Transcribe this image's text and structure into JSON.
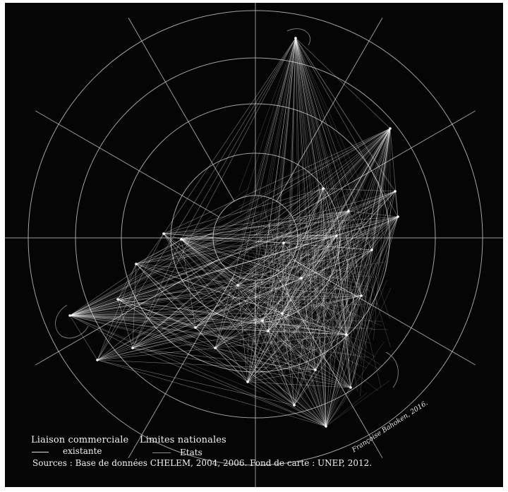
{
  "legend": {
    "trade": {
      "title": "Liaison commerciale",
      "item": "existante"
    },
    "borders": {
      "title": "Limites nationales",
      "item": "Etats"
    }
  },
  "credit": "Françoise Bahoken, 2016.",
  "sources": "Sources : Base de données CHELEM, 2004, 2006. Fond de carte : UNEP, 2012.",
  "colors": {
    "background": "#050505",
    "flows": "#ffffff",
    "graticule": "#bdbdbd",
    "text": "#f2f2f2"
  }
}
